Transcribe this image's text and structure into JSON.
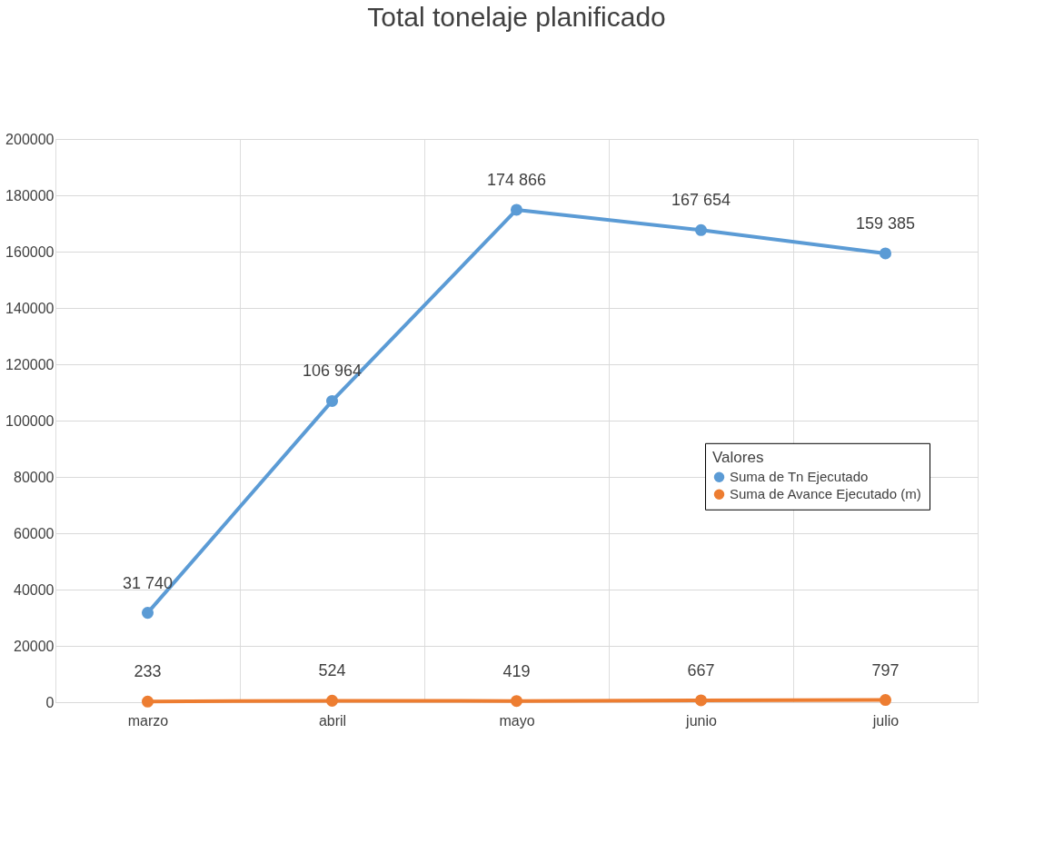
{
  "chart_data": {
    "type": "line",
    "title": "Total tonelaje planificado",
    "categories": [
      "marzo",
      "abril",
      "mayo",
      "junio",
      "julio"
    ],
    "series": [
      {
        "name": "Suma de Tn Ejecutado",
        "color": "#5b9bd5",
        "values": [
          31740,
          106964,
          174866,
          167654,
          159385
        ],
        "value_labels": [
          "31 740",
          "106 964",
          "174 866",
          "167 654",
          "159 385"
        ]
      },
      {
        "name": "Suma de Avance Ejecutado (m)",
        "color": "#ed7d31",
        "values": [
          233,
          524,
          419,
          667,
          797
        ],
        "value_labels": [
          "233",
          "524",
          "419",
          "667",
          "797"
        ]
      }
    ],
    "legend_title": "Valores",
    "legend": "right",
    "marker": "circle",
    "line_style": "solid",
    "grid": true,
    "ylim": [
      0,
      200000
    ],
    "yticks": [
      0,
      20000,
      40000,
      60000,
      80000,
      100000,
      120000,
      140000,
      160000,
      180000,
      200000
    ]
  }
}
